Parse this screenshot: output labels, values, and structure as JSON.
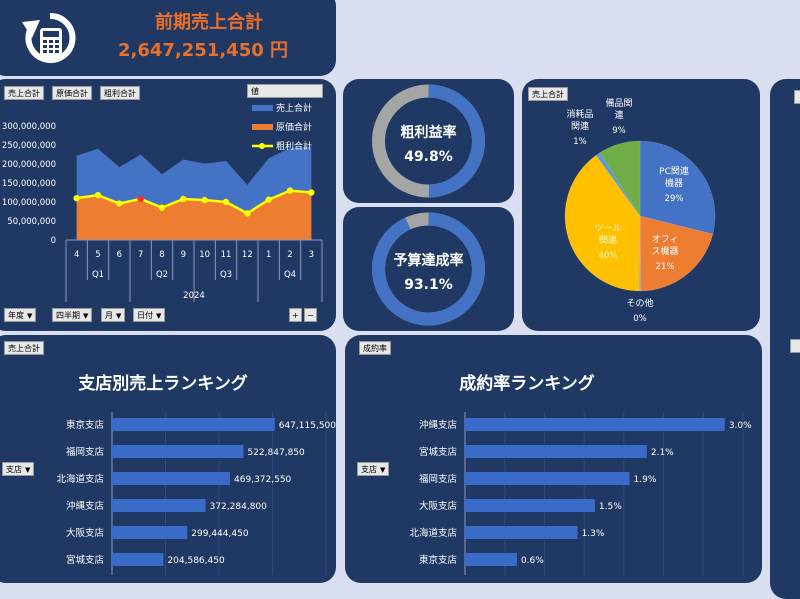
{
  "header": {
    "title": "前期売上合計",
    "total": "2,647,251,450 円",
    "icon": "refresh-calculator-icon"
  },
  "colors": {
    "panel": "#1f3864",
    "background": "#d9dff0",
    "title_orange": "#e8702a",
    "sales": "#4472c4",
    "cost": "#ed7d31",
    "profit": "#ffff00",
    "bar": "#3a6bc9",
    "donut_track": "#a5a5a5"
  },
  "combo_buttons": [
    "売上合計",
    "原価合計",
    "粗利合計"
  ],
  "combo_filter_buttons": [
    {
      "label": "年度",
      "icon": "filter-icon"
    },
    {
      "label": "四半期"
    },
    {
      "label": "月"
    },
    {
      "label": "日付"
    }
  ],
  "combo_legend_header": "値",
  "combo_chart": {
    "type": "area",
    "year": "2024",
    "months": [
      "4",
      "5",
      "6",
      "7",
      "8",
      "9",
      "10",
      "11",
      "12",
      "1",
      "2",
      "3"
    ],
    "quarters": [
      "Q1",
      "Q2",
      "Q3",
      "Q4"
    ],
    "y_ticks": [
      "300,000,000",
      "250,000,000",
      "200,000,000",
      "150,000,000",
      "100,000,000",
      "50,000,000",
      "0"
    ],
    "ylim": [
      0,
      300000000
    ],
    "series": [
      {
        "name": "売上合計",
        "type": "area",
        "values": [
          222000000,
          240000000,
          192000000,
          225000000,
          173000000,
          212000000,
          201000000,
          208000000,
          145000000,
          215000000,
          242000000,
          246000000
        ]
      },
      {
        "name": "原価合計",
        "type": "area",
        "values": [
          115000000,
          118000000,
          98000000,
          108000000,
          88000000,
          110000000,
          108000000,
          102000000,
          70000000,
          106000000,
          128000000,
          128000000
        ]
      },
      {
        "name": "粗利合計",
        "type": "line",
        "values": [
          110000000,
          118000000,
          96000000,
          108000000,
          85000000,
          108000000,
          105000000,
          100000000,
          70000000,
          106000000,
          130000000,
          125000000
        ]
      }
    ]
  },
  "donuts": [
    {
      "label": "粗利益率",
      "value_text": "49.8%",
      "value": 0.498
    },
    {
      "label": "予算達成率",
      "value_text": "93.1%",
      "value": 0.931
    }
  ],
  "pie_button": "売上合計",
  "pie_chart": {
    "type": "pie",
    "slices": [
      {
        "name": "PC関連機器",
        "pct": "29%",
        "value": 29,
        "color": "#4472c4"
      },
      {
        "name": "オフィス機器",
        "pct": "21%",
        "value": 21,
        "color": "#ed7d31"
      },
      {
        "name": "その他",
        "pct": "0%",
        "value": 0.4,
        "color": "#a5a5a5"
      },
      {
        "name": "ツール関連",
        "pct": "40%",
        "value": 40,
        "color": "#ffc000"
      },
      {
        "name": "消耗品関連",
        "pct": "1%",
        "value": 1,
        "color": "#5b9bd5"
      },
      {
        "name": "備品関連",
        "pct": "9%",
        "value": 9,
        "color": "#70ad47"
      }
    ]
  },
  "ranking_sales": {
    "button": "売上合計",
    "filter": "支店",
    "title": "支店別売上ランキング",
    "rows": [
      {
        "name": "東京支店",
        "value": 647115500,
        "label": "647,115,500"
      },
      {
        "name": "福岡支店",
        "value": 522847850,
        "label": "522,847,850"
      },
      {
        "name": "北海道支店",
        "value": 469372550,
        "label": "469,372,550"
      },
      {
        "name": "沖縄支店",
        "value": 372284800,
        "label": "372,284,800"
      },
      {
        "name": "大阪支店",
        "value": 299444450,
        "label": "299,444,450"
      },
      {
        "name": "宮城支店",
        "value": 204586450,
        "label": "204,586,450"
      }
    ]
  },
  "ranking_rate": {
    "button": "成約率",
    "filter": "支店",
    "title": "成約率ランキング",
    "rows": [
      {
        "name": "沖縄支店",
        "value": 3.0,
        "label": "3.0%"
      },
      {
        "name": "宮城支店",
        "value": 2.1,
        "label": "2.1%"
      },
      {
        "name": "福岡支店",
        "value": 1.9,
        "label": "1.9%"
      },
      {
        "name": "大阪支店",
        "value": 1.5,
        "label": "1.5%"
      },
      {
        "name": "北海道支店",
        "value": 1.3,
        "label": "1.3%"
      },
      {
        "name": "東京支店",
        "value": 0.6,
        "label": "0.6%"
      }
    ]
  },
  "zoom_buttons": [
    "+",
    "−"
  ]
}
